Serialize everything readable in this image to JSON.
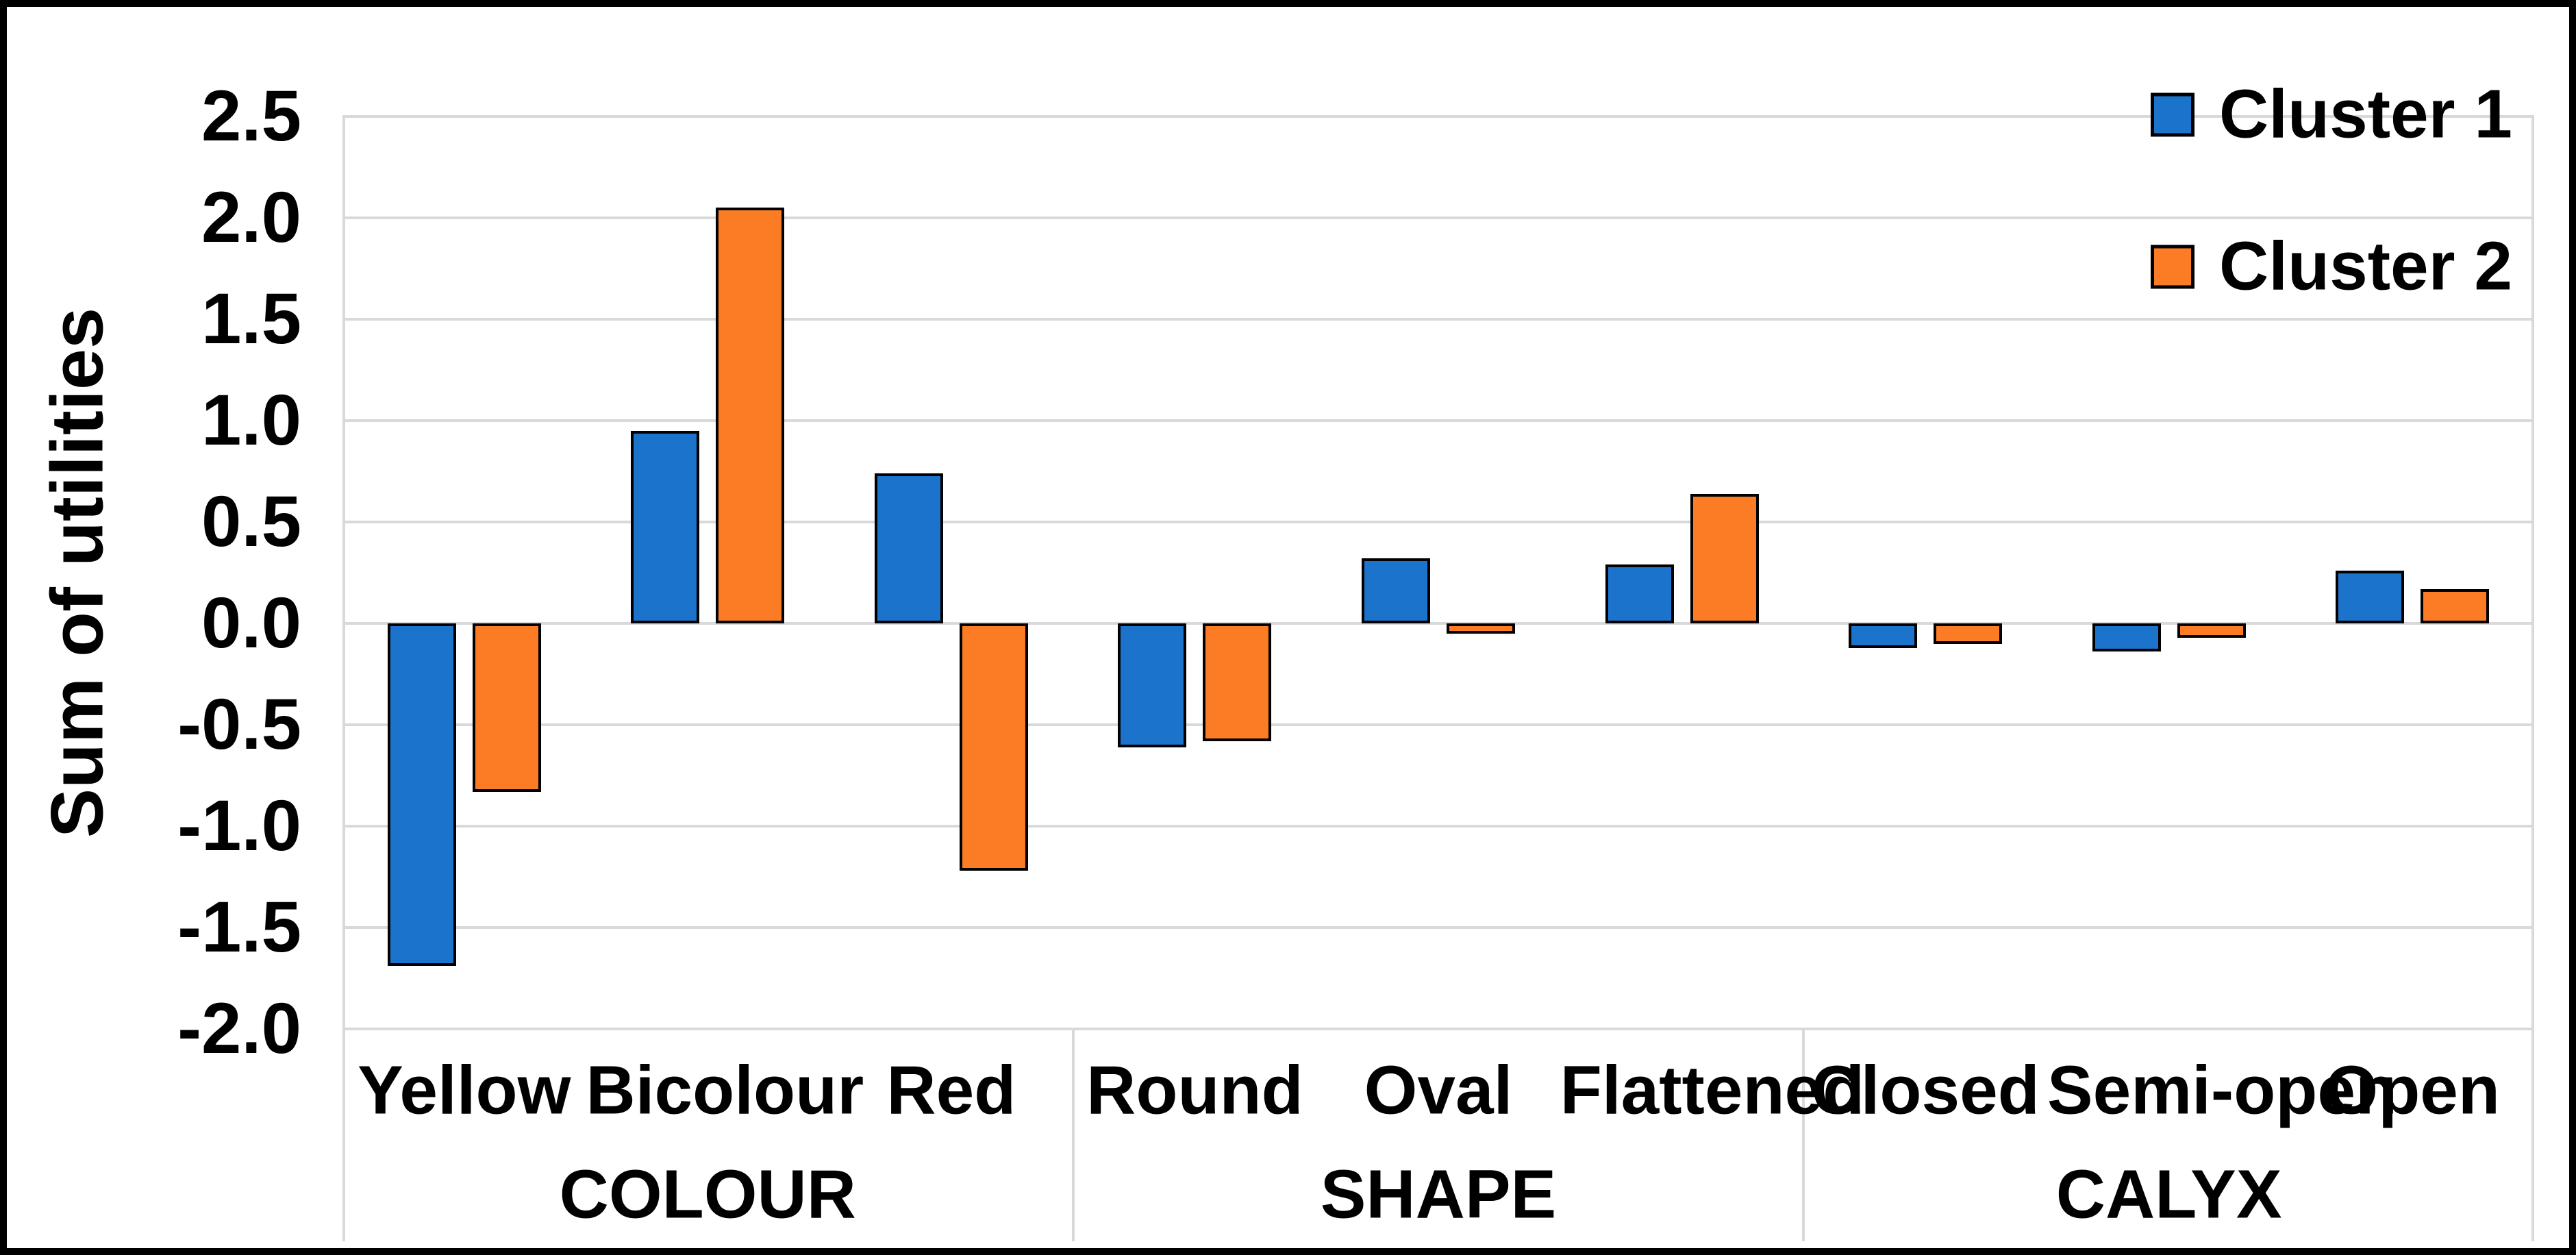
{
  "chart_data": {
    "type": "bar",
    "title": "",
    "ylabel": "Sum of utilities",
    "xlabel": "",
    "ylim": [
      -2.0,
      2.5
    ],
    "ytick_step": 0.5,
    "yticks": [
      "2.5",
      "2.0",
      "1.5",
      "1.0",
      "0.5",
      "0.0",
      "-0.5",
      "-1.0",
      "-1.5",
      "-2.0"
    ],
    "categories": [
      "Yellow",
      "Bicolour",
      "Red",
      "Round",
      "Oval",
      "Flattened",
      "Closed",
      "Semi-open",
      "Open"
    ],
    "groups": [
      {
        "label": "COLOUR",
        "start": 0,
        "end": 2
      },
      {
        "label": "SHAPE",
        "start": 3,
        "end": 5
      },
      {
        "label": "CALYX",
        "start": 6,
        "end": 8
      }
    ],
    "series": [
      {
        "name": "Cluster 1",
        "color": "#1b73cb",
        "values": [
          -1.69,
          0.95,
          0.74,
          -0.61,
          0.32,
          0.29,
          -0.12,
          -0.14,
          0.26
        ]
      },
      {
        "name": "Cluster 2",
        "color": "#fb7c25",
        "values": [
          -0.83,
          2.05,
          -1.22,
          -0.58,
          -0.05,
          0.64,
          -0.1,
          -0.07,
          0.17
        ]
      }
    ],
    "legend_position": "top-right",
    "grid": true,
    "gridline_color": "#d9d9d9",
    "bar_border_color": "#000000",
    "background_color": "#ffffff"
  }
}
